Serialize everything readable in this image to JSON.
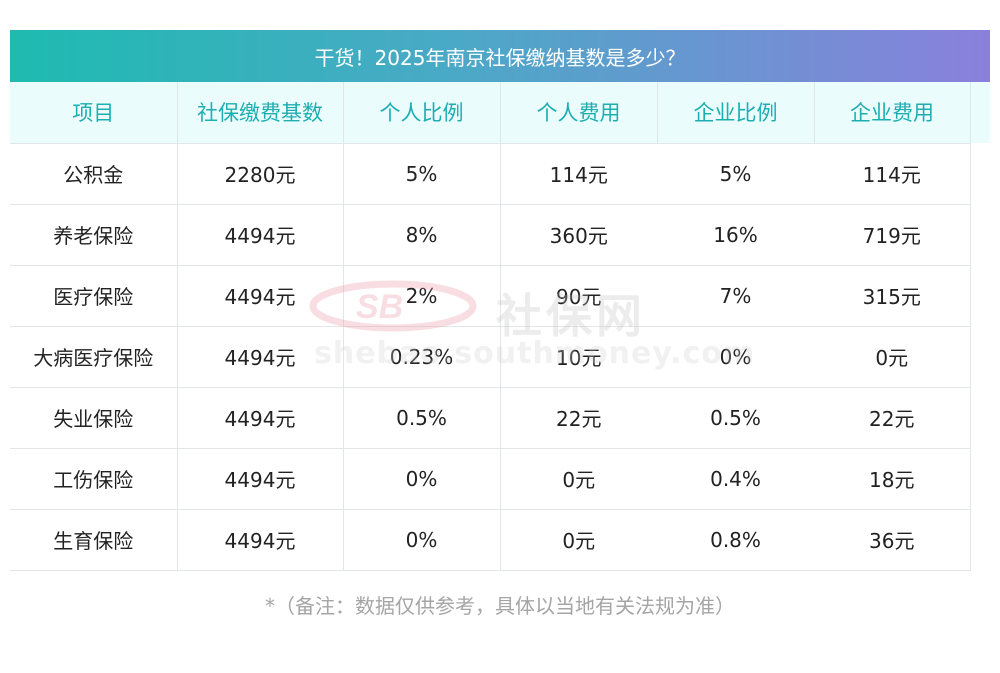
{
  "title": "干货！2025年南京社保缴纳基数是多少？",
  "table": {
    "headers": [
      "项目",
      "社保缴费基数",
      "个人比例",
      "个人费用",
      "企业比例",
      "企业费用"
    ],
    "rows": [
      [
        "公积金",
        "2280元",
        "5%",
        "114元",
        "5%",
        "114元"
      ],
      [
        "养老保险",
        "4494元",
        "8%",
        "360元",
        "16%",
        "719元"
      ],
      [
        "医疗保险",
        "4494元",
        "2%",
        "90元",
        "7%",
        "315元"
      ],
      [
        "大病医疗保险",
        "4494元",
        "0.23%",
        "10元",
        "0%",
        "0元"
      ],
      [
        "失业保险",
        "4494元",
        "0.5%",
        "22元",
        "0.5%",
        "22元"
      ],
      [
        "工伤保险",
        "4494元",
        "0%",
        "0元",
        "0.4%",
        "18元"
      ],
      [
        "生育保险",
        "4494元",
        "0%",
        "0元",
        "0.8%",
        "36元"
      ]
    ]
  },
  "watermark": {
    "logo_text": "社保网",
    "url_text": "shebao.southmoney.com"
  },
  "footnote": "*（备注：数据仅供参考，具体以当地有关法规为准）",
  "colors": {
    "title_gradient_start": "#1ebbb0",
    "title_gradient_end": "#8a80dc",
    "header_text": "#1eaeb2",
    "header_bg": "#eafdfc",
    "footnote_text": "#a5a5a5"
  }
}
